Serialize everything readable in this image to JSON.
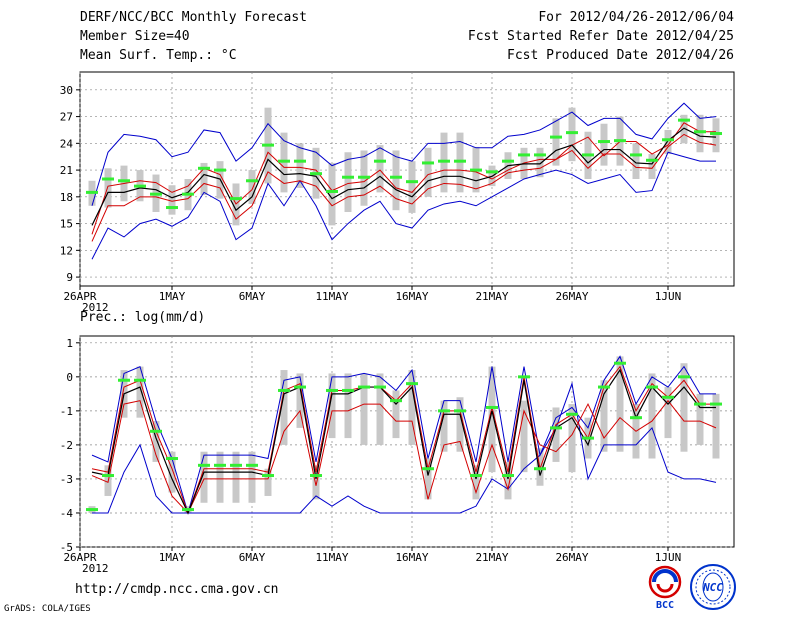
{
  "header": {
    "title": "DERF/NCC/BCC Monthly Forecast",
    "member_size": "Member Size=40",
    "variable": "Mean Surf. Temp.: °C",
    "period": "For 2012/04/26-2012/06/04",
    "started": "Fcst Started Refer Date 2012/04/25",
    "produced": "Fcst Produced Date 2012/04/26"
  },
  "panel2_label": "Prec.: log(mm/d)",
  "footer": {
    "url": "http://cmdp.ncc.cma.gov.cn",
    "grads": "GrADS: COLA/IGES"
  },
  "logos": {
    "bcc": "BCC",
    "ncc": "NCC"
  },
  "colors": {
    "ensemble_mean": "#000000",
    "spread": "#d40000",
    "extreme": "#0000cc",
    "member_bar": "#c8c8c8",
    "observed": "#33ee33"
  },
  "chart_data": [
    {
      "type": "line",
      "title": "Mean Surf. Temp.: °C",
      "x_tick_labels": [
        "26APR",
        "1MAY",
        "6MAY",
        "11MAY",
        "16MAY",
        "21MAY",
        "26MAY",
        "1JUN"
      ],
      "x_tick_days": [
        0,
        5,
        10,
        15,
        20,
        25,
        30,
        36
      ],
      "year_label": "2012",
      "days": 40,
      "ylim": [
        8,
        32
      ],
      "y_ticks": [
        9,
        12,
        15,
        18,
        21,
        24,
        27,
        30
      ],
      "grid": true,
      "series": {
        "max": [
          11,
          14.5,
          13.5,
          15,
          15.5,
          14.7,
          15.7,
          18.5,
          17.5,
          13.2,
          14.5,
          19.5,
          17,
          19.8,
          17,
          13.2,
          15,
          16.5,
          17.5,
          15,
          14.5,
          16.5,
          17.2,
          17.5,
          17,
          18,
          19,
          20,
          20.5,
          21,
          20.5,
          19.5,
          20,
          20.5,
          18.5,
          18.7,
          23,
          22.5,
          22,
          22
        ],
        "p75": [
          13.8,
          19.2,
          19.5,
          19.8,
          19.6,
          18.5,
          19.2,
          21.2,
          20.5,
          17.2,
          18.8,
          23,
          21.3,
          21.3,
          21,
          18.7,
          19.5,
          19.7,
          21,
          19,
          18.5,
          20.5,
          21,
          21,
          20.8,
          20,
          21,
          21.8,
          22.2,
          22.2,
          23.8,
          24.7,
          22.6,
          24.2,
          24.2,
          22.8,
          23.8,
          26.3,
          25.3,
          25.3
        ],
        "mean": [
          14.8,
          18.5,
          18.5,
          19,
          18.8,
          17.9,
          18.5,
          20.5,
          20,
          16.5,
          18,
          22.2,
          20.5,
          20.6,
          20.3,
          17.8,
          18.8,
          19,
          20.3,
          18.8,
          18,
          19.8,
          20.3,
          20.3,
          19.8,
          20.3,
          21.5,
          21.7,
          21.7,
          23.2,
          23.8,
          21.8,
          23.3,
          23.3,
          21.8,
          21.7,
          24.3,
          25.7,
          24.8,
          24.7
        ],
        "p25": [
          13,
          17,
          17,
          18,
          18,
          17.5,
          17.8,
          19.5,
          19,
          15.5,
          17,
          20.8,
          19.5,
          19.8,
          19.2,
          17,
          18,
          18.2,
          19.2,
          17.8,
          17.2,
          18.9,
          19.5,
          19.4,
          18.9,
          19.5,
          20.7,
          21,
          21.2,
          22.2,
          23.2,
          21.2,
          22.8,
          22.8,
          21.3,
          21.2,
          23.6,
          25,
          24.1,
          23.8
        ],
        "min_p": [
          11,
          14.2,
          13.6,
          15.1,
          15.3,
          14.8,
          15.5,
          18.2,
          17.5,
          13.2,
          14.5,
          19.5,
          17,
          19.8,
          17,
          13.4,
          15,
          16.5,
          17.5,
          15.1,
          14.4,
          16.5,
          17.2,
          17.6,
          17.1,
          18,
          19,
          20,
          20.3,
          21,
          20.3,
          19.5,
          20.1,
          20.4,
          18.3,
          18.6,
          23,
          22.6,
          22,
          22
        ],
        "upper": [
          17,
          23,
          25,
          24.8,
          24.4,
          22.5,
          23,
          25.5,
          25.2,
          22,
          23.5,
          26.2,
          24.3,
          23.5,
          23,
          21.5,
          22.2,
          22.5,
          23.5,
          22.5,
          22,
          24,
          24,
          24.2,
          23.5,
          23.5,
          24.8,
          25,
          25.5,
          26.5,
          27.5,
          26,
          26.8,
          26.8,
          25,
          24.5,
          26.8,
          28.5,
          26.8,
          27
        ],
        "obs": [
          18.5,
          20,
          19.8,
          19.2,
          18.3,
          16.8,
          18.3,
          21.2,
          21,
          17.8,
          19.8,
          23.8,
          22,
          22,
          20.6,
          18.6,
          20.2,
          20.2,
          22,
          20.2,
          19.7,
          21.8,
          22,
          22,
          21,
          20.8,
          22,
          22.7,
          22.7,
          24.7,
          25.2,
          22.7,
          24.2,
          24.3,
          22.7,
          22.1,
          24.4,
          26.6,
          25.3,
          25.1
        ],
        "bar_top": [
          19.8,
          21.2,
          21.5,
          21,
          20.5,
          19.3,
          20,
          21.8,
          22,
          19.5,
          21,
          28,
          25.2,
          24,
          23.5,
          21.8,
          23,
          23.2,
          23.8,
          23.2,
          22,
          23.5,
          25.2,
          25.2,
          23.6,
          21.5,
          23,
          23.5,
          23.5,
          26.8,
          28,
          25.3,
          26.2,
          27,
          24,
          22.8,
          25.5,
          27.2,
          27.2,
          26.8
        ],
        "bar_bot": [
          17,
          16.8,
          17.5,
          17.5,
          16.3,
          16,
          16.5,
          18.2,
          17.8,
          14.8,
          17.2,
          19.5,
          18.5,
          19,
          17.8,
          14.8,
          16.3,
          17,
          18.5,
          16.5,
          16.2,
          18,
          18.5,
          18.5,
          18.5,
          19.2,
          20,
          20,
          20.2,
          21.5,
          22,
          20,
          21.5,
          21.5,
          20,
          20,
          22.8,
          24,
          23,
          23
        ]
      }
    },
    {
      "type": "line",
      "title": "Prec.: log(mm/d)",
      "x_tick_labels": [
        "26APR",
        "1MAY",
        "6MAY",
        "11MAY",
        "16MAY",
        "21MAY",
        "26MAY",
        "1JUN"
      ],
      "x_tick_days": [
        0,
        5,
        10,
        15,
        20,
        25,
        30,
        36
      ],
      "year_label": "2012",
      "days": 40,
      "ylim": [
        -5,
        1.2
      ],
      "y_ticks": [
        -5,
        -4,
        -3,
        -2,
        -1,
        0,
        1
      ],
      "grid": true,
      "series": {
        "max": [
          -4,
          -4,
          -2.8,
          -2,
          -3.5,
          -4,
          -4,
          -4,
          -4,
          -4,
          -4,
          -4,
          -4,
          -4,
          -3.5,
          -3.8,
          -3.5,
          -3.8,
          -4,
          -4,
          -4,
          -4,
          -4,
          -4,
          -3.8,
          -3,
          -3.3,
          -2.7,
          -2.3,
          -1.5,
          -0.2,
          -3,
          -2,
          -2,
          -2,
          -1.5,
          -2.8,
          -3,
          -3,
          -3.1
        ],
        "p75": [
          -2.9,
          -3.1,
          -0.8,
          -0.7,
          -2.3,
          -3.5,
          -4,
          -3,
          -3,
          -3,
          -3,
          -3,
          -1.6,
          -1,
          -3.2,
          -1,
          -1,
          -0.8,
          -0.8,
          -1.3,
          -1.3,
          -3.6,
          -2,
          -1.9,
          -3.4,
          -2,
          -3.3,
          -1,
          -2,
          -2.2,
          -1.7,
          -0.8,
          -1.8,
          -1.2,
          -1.6,
          -1.3,
          -0.7,
          -1.3,
          -1.3,
          -1.5
        ],
        "mean": [
          -2.8,
          -2.9,
          -0.5,
          -0.3,
          -1.8,
          -3,
          -4,
          -2.8,
          -2.8,
          -2.8,
          -2.8,
          -2.9,
          -0.5,
          -0.3,
          -3,
          -0.5,
          -0.5,
          -0.3,
          -0.3,
          -0.8,
          -0.3,
          -2.9,
          -1.1,
          -1.1,
          -3,
          -1,
          -3,
          -0.1,
          -2.9,
          -1.5,
          -1.2,
          -2,
          -0.5,
          0.2,
          -1.2,
          -0.3,
          -0.8,
          -0.3,
          -0.9,
          -0.9
        ],
        "p25": [
          -2.7,
          -2.8,
          -0.3,
          -0.1,
          -1.6,
          -2.7,
          -4,
          -2.7,
          -2.7,
          -2.7,
          -2.7,
          -2.8,
          -0.4,
          -0.2,
          -2.8,
          -0.4,
          -0.4,
          -0.3,
          -0.3,
          -0.7,
          -0.2,
          -2.7,
          -1,
          -1,
          -2.8,
          -0.9,
          -2.8,
          0,
          -2.7,
          -1.4,
          -1.1,
          -1.8,
          -0.3,
          0.3,
          -1,
          -0.2,
          -0.6,
          -0.1,
          -0.8,
          -0.8
        ],
        "upper": [
          -2.3,
          -2.5,
          0.1,
          0.3,
          -1.3,
          -2.4,
          -4,
          -2.3,
          -2.3,
          -2.3,
          -2.3,
          -2.4,
          -0.1,
          0,
          -2.5,
          0,
          0,
          0.1,
          0,
          -0.4,
          0.2,
          -2.4,
          -0.7,
          -0.7,
          -2.5,
          0.3,
          -2.5,
          0.3,
          -2.3,
          -1.2,
          -0.9,
          -1.5,
          -0.1,
          0.6,
          -0.8,
          0,
          -0.3,
          0.3,
          -0.5,
          -0.5
        ],
        "obs": [
          -3.9,
          -2.9,
          -0.1,
          -0.1,
          -1.6,
          -2.4,
          -3.9,
          -2.6,
          -2.6,
          -2.6,
          -2.6,
          -2.9,
          -0.4,
          -0.3,
          -2.9,
          -0.4,
          -0.4,
          -0.3,
          -0.3,
          -0.7,
          -0.2,
          -2.7,
          -1,
          -1,
          -2.9,
          -0.9,
          -2.9,
          0,
          -2.7,
          -1.5,
          -1.1,
          -1.8,
          -0.3,
          0.4,
          -1.2,
          -0.3,
          -0.6,
          0,
          -0.8,
          -0.8
        ],
        "bar_top": [
          -3.8,
          -2.6,
          0.2,
          0.3,
          -1.3,
          -2.2,
          -3.8,
          -2.2,
          -2.2,
          -2.2,
          -2.2,
          -2.7,
          0.2,
          0.1,
          -2.6,
          0.1,
          0.1,
          0.1,
          0.1,
          -0.4,
          0.2,
          -2.4,
          -0.7,
          -0.6,
          -2.6,
          0.3,
          -2.5,
          -0.7,
          -2.1,
          -0.9,
          -0.8,
          -1.2,
          -0.1,
          0.6,
          -0.8,
          0.1,
          -0.3,
          0.4,
          -0.5,
          -0.5
        ],
        "bar_bot": [
          -4,
          -3.5,
          -1.2,
          -1.2,
          -2.5,
          -3.4,
          -4,
          -3.7,
          -3.7,
          -3.7,
          -3.7,
          -3.5,
          -2,
          -1.5,
          -3.6,
          -1.8,
          -1.8,
          -2,
          -2,
          -1.8,
          -2,
          -3.6,
          -2.2,
          -2.2,
          -3.6,
          -2.8,
          -3.6,
          -2.8,
          -3.2,
          -2.5,
          -2.8,
          -2.4,
          -2.2,
          -2.2,
          -2.4,
          -2.4,
          -1.8,
          -2.2,
          -2,
          -2.4
        ]
      }
    }
  ]
}
